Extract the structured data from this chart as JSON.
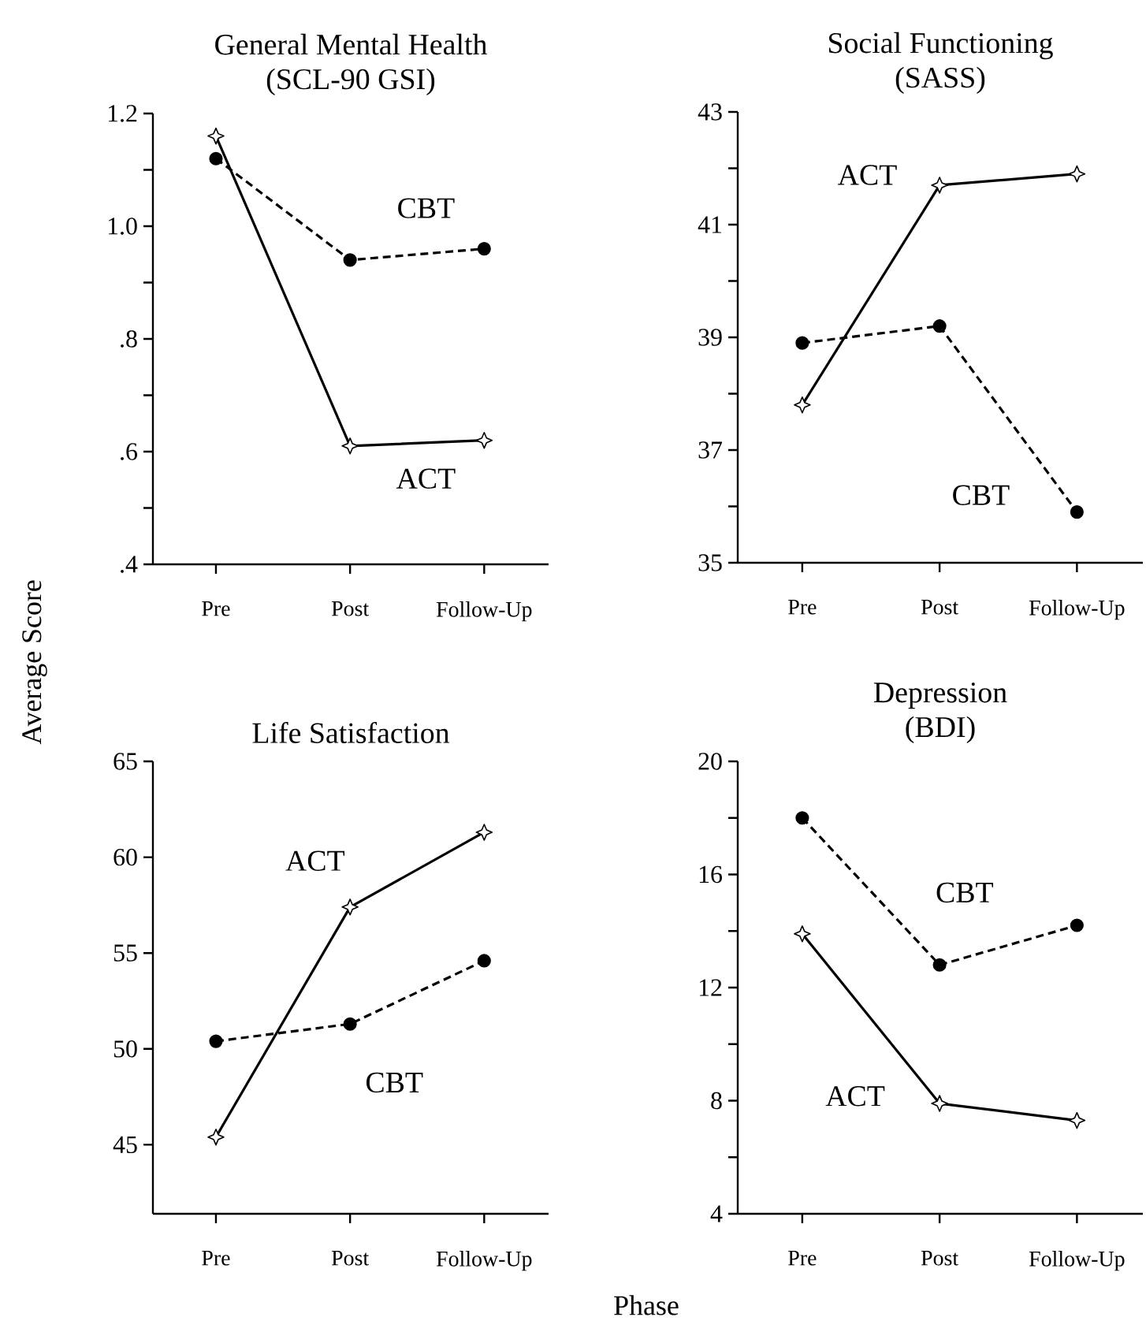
{
  "chart_data": [
    {
      "type": "line",
      "title": "General Mental Health",
      "subtitle": "(SCL-90 GSI)",
      "ylabel": "Average Score",
      "categories": [
        "Pre",
        "Post",
        "Follow-Up"
      ],
      "ylim": [
        0.4,
        1.2
      ],
      "yticks": [
        {
          "value": 0.4,
          "label": ".4"
        },
        {
          "value": 0.5,
          "label": null
        },
        {
          "value": 0.6,
          "label": ".6"
        },
        {
          "value": 0.7,
          "label": null
        },
        {
          "value": 0.8,
          "label": ".8"
        },
        {
          "value": 0.9,
          "label": null
        },
        {
          "value": 1.0,
          "label": "1.0"
        },
        {
          "value": 1.1,
          "label": null
        },
        1.2
      ],
      "series": [
        {
          "name": "ACT",
          "color": "#000000",
          "marker": "star",
          "line_style": "solid",
          "values": [
            1.16,
            0.61,
            0.62
          ]
        },
        {
          "name": "CBT",
          "color": "#000000",
          "marker": "circle",
          "line_style": "dashed",
          "values": [
            1.12,
            0.94,
            0.96
          ]
        }
      ]
    },
    {
      "type": "line",
      "title": "Social Functioning",
      "subtitle": "(SASS)",
      "categories": [
        "Pre",
        "Post",
        "Follow-Up"
      ],
      "ylim": [
        35,
        43
      ],
      "yticks": [
        35,
        {
          "value": 36,
          "label": null
        },
        37,
        {
          "value": 38,
          "label": null
        },
        39,
        {
          "value": 40,
          "label": null
        },
        41,
        {
          "value": 42,
          "label": null
        },
        43
      ],
      "series": [
        {
          "name": "ACT",
          "color": "#000000",
          "marker": "star",
          "line_style": "solid",
          "values": [
            37.8,
            41.7,
            41.9
          ]
        },
        {
          "name": "CBT",
          "color": "#000000",
          "marker": "circle",
          "line_style": "dashed",
          "values": [
            38.9,
            39.2,
            35.9
          ]
        }
      ]
    },
    {
      "type": "line",
      "title": "Life Satisfaction",
      "categories": [
        "Pre",
        "Post",
        "Follow-Up"
      ],
      "ylim": [
        41.4,
        65
      ],
      "yticks": [
        45,
        50,
        55,
        60,
        65
      ],
      "series": [
        {
          "name": "ACT",
          "color": "#000000",
          "marker": "star",
          "line_style": "solid",
          "values": [
            45.4,
            57.4,
            61.3
          ]
        },
        {
          "name": "CBT",
          "color": "#000000",
          "marker": "circle",
          "line_style": "dashed",
          "values": [
            50.4,
            51.3,
            54.6
          ]
        }
      ]
    },
    {
      "type": "line",
      "title": "Depression",
      "subtitle": "(BDI)",
      "xlabel": "Phase",
      "categories": [
        "Pre",
        "Post",
        "Follow-Up"
      ],
      "ylim": [
        4,
        20
      ],
      "yticks": [
        4,
        {
          "value": 6,
          "label": null
        },
        8,
        {
          "value": 10,
          "label": null
        },
        12,
        {
          "value": 14,
          "label": null
        },
        16,
        {
          "value": 18,
          "label": null
        },
        20
      ],
      "series": [
        {
          "name": "ACT",
          "color": "#000000",
          "marker": "star",
          "line_style": "solid",
          "values": [
            13.9,
            7.9,
            7.3
          ]
        },
        {
          "name": "CBT",
          "color": "#000000",
          "marker": "circle",
          "line_style": "dashed",
          "values": [
            18.0,
            12.8,
            14.2
          ]
        }
      ]
    }
  ]
}
